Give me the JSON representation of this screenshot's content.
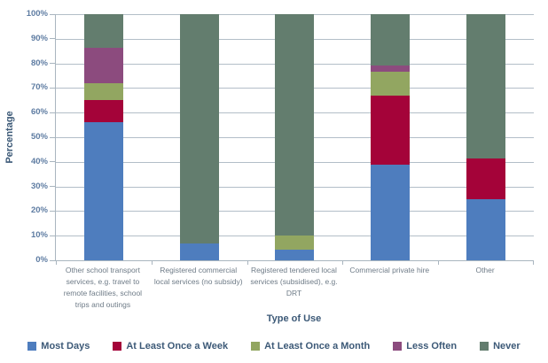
{
  "colors": {
    "grid": "#b3bec8",
    "axis": "#a9b5bf",
    "tick_text": "#5e7ca2",
    "title_text": "#3c5977",
    "category_text": "#6e7b87",
    "background": "#ffffff"
  },
  "chart_data": {
    "type": "bar",
    "stacked": true,
    "percent_stacked": true,
    "title": "",
    "xlabel": "Type of Use",
    "ylabel": "Percentage",
    "ylim": [
      0,
      100
    ],
    "ytick_step": 10,
    "ytick_labels": [
      "0%",
      "10%",
      "20%",
      "30%",
      "40%",
      "50%",
      "60%",
      "70%",
      "80%",
      "90%",
      "100%"
    ],
    "grid": true,
    "legend_position": "bottom",
    "categories": [
      "Other school transport services, e.g. travel to remote facilities, school trips and outings",
      "Registered commercial local services (no subsidy)",
      "Registered tendered local services (subsidised), e.g. DRT",
      "Commercial private hire",
      "Other"
    ],
    "category_label_lines": [
      "Other school transport\nservices, e.g. travel to\nremote facilities, school\ntrips and outings",
      "Registered commercial\nlocal services (no subsidy)",
      "Registered tendered local\nservices (subsidised), e.g.\nDRT",
      "Commercial private hire",
      "Other"
    ],
    "series": [
      {
        "name": "Most Days",
        "color": "#4e7dbe",
        "values": [
          56,
          7,
          4.5,
          39,
          25
        ]
      },
      {
        "name": "At Least Once a Week",
        "color": "#a40339",
        "values": [
          9,
          0,
          0,
          28,
          16.5
        ]
      },
      {
        "name": "At Least Once a Month",
        "color": "#92a661",
        "values": [
          7,
          0,
          5.5,
          9.5,
          0
        ]
      },
      {
        "name": "Less Often",
        "color": "#8c4b7e",
        "values": [
          14.5,
          0,
          0,
          2.5,
          0
        ]
      },
      {
        "name": "Never",
        "color": "#637d6e",
        "values": [
          13.5,
          93,
          90,
          21,
          58.5
        ]
      }
    ]
  }
}
